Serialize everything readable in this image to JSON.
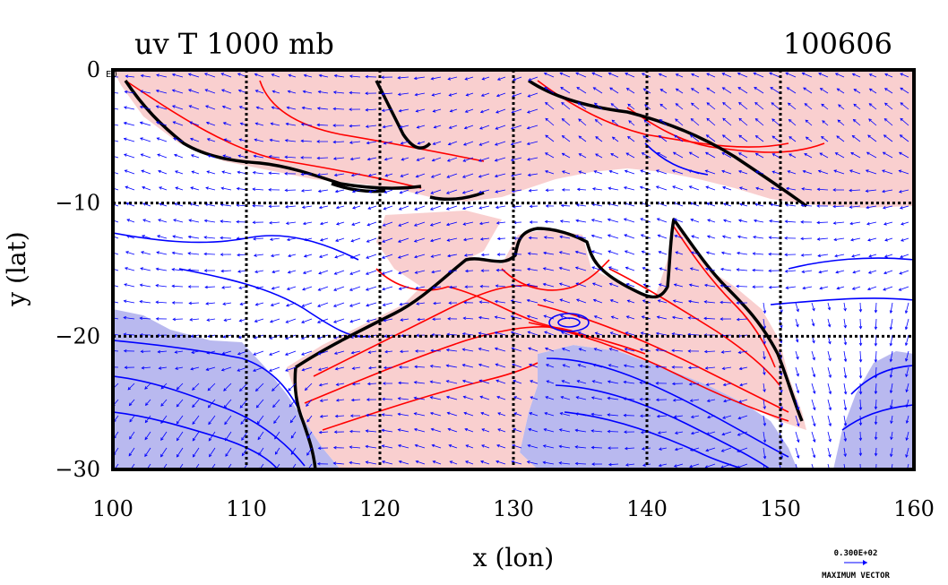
{
  "title": "uv T 1000 mb",
  "date": "100606",
  "xlabel": "x (lon)",
  "ylabel": "y (lat)",
  "corner_label": "E0",
  "vector_legend": {
    "value": "0.300E+02",
    "label": "MAXIMUM VECTOR"
  },
  "colors": {
    "warm_fill": "#f9cfcf",
    "cold_fill": "#b9b9ef",
    "warm_contour": "#ff0000",
    "cold_contour": "#0000ff",
    "vector": "#0000ff",
    "coast": "#000000"
  },
  "chart_data": {
    "type": "map",
    "xlim": [
      100,
      160
    ],
    "ylim": [
      -30,
      0
    ],
    "xticks": [
      100,
      110,
      120,
      130,
      140,
      150,
      160
    ],
    "yticks": [
      0,
      -10,
      -20,
      -30
    ],
    "xtick_labels": [
      "100",
      "110",
      "120",
      "130",
      "140",
      "150",
      "160"
    ],
    "ytick_labels": [
      "0",
      "−10",
      "−20",
      "−30"
    ],
    "grid": true
  }
}
